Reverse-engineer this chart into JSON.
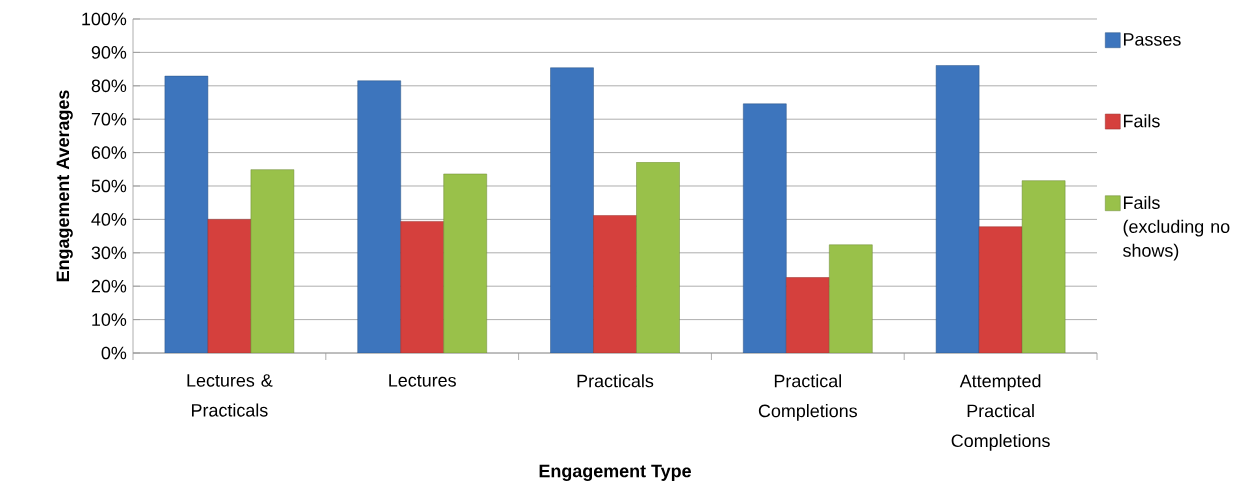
{
  "chart_data": {
    "type": "bar",
    "xlabel": "Engagement Type",
    "ylabel": "Engagement  Averages",
    "categories": [
      "Lectures & Practicals",
      "Lectures",
      "Practicals",
      "Practical Completions",
      "Attempted Practical Completions"
    ],
    "series": [
      {
        "name": "Passes",
        "color": "#3d75bd",
        "values": [
          82.9,
          81.5,
          85.4,
          74.6,
          86.1
        ]
      },
      {
        "name": "Fails",
        "color": "#d5403d",
        "values": [
          40.0,
          39.4,
          41.2,
          22.6,
          37.8
        ]
      },
      {
        "name": "Fails (excluding no shows)",
        "color": "#99c14a",
        "values": [
          54.9,
          53.6,
          57.1,
          32.4,
          51.6
        ]
      }
    ],
    "ylim": [
      0,
      100
    ],
    "yticks": [
      {
        "value": 0,
        "label": "0%"
      },
      {
        "value": 10,
        "label": "10%"
      },
      {
        "value": 20,
        "label": "20%"
      },
      {
        "value": 30,
        "label": "30%"
      },
      {
        "value": 40,
        "label": "40%"
      },
      {
        "value": 50,
        "label": "50%"
      },
      {
        "value": 60,
        "label": "60%"
      },
      {
        "value": 70,
        "label": "70%"
      },
      {
        "value": 80,
        "label": "80%"
      },
      {
        "value": 90,
        "label": "90%"
      },
      {
        "value": 100,
        "label": "100%"
      }
    ],
    "grid": "y",
    "legend": "right"
  }
}
